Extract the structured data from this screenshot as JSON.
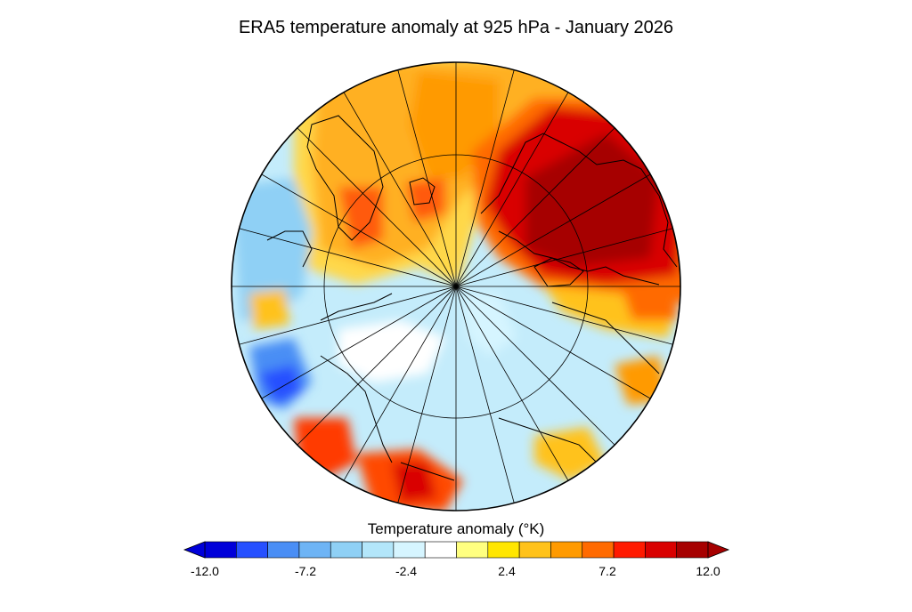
{
  "title": "ERA5 temperature anomaly at 925 hPa - January 2026",
  "colorbar": {
    "label": "Temperature anomaly (°K)",
    "min": -12.0,
    "max": 12.0,
    "ticks": [
      "-12.0",
      "-7.2",
      "-2.4",
      "2.4",
      "7.2",
      "12.0"
    ],
    "colors": [
      "#0000d9",
      "#2650ff",
      "#4a8ef5",
      "#6eb4f5",
      "#8fd0f5",
      "#b3e6fa",
      "#d6f5ff",
      "#ffffff",
      "#ffff80",
      "#ffe600",
      "#ffc21a",
      "#ff9a00",
      "#ff6a00",
      "#ff1a00",
      "#d90000",
      "#a60000"
    ],
    "under_color": "#0000d9",
    "over_color": "#a60000"
  }
}
